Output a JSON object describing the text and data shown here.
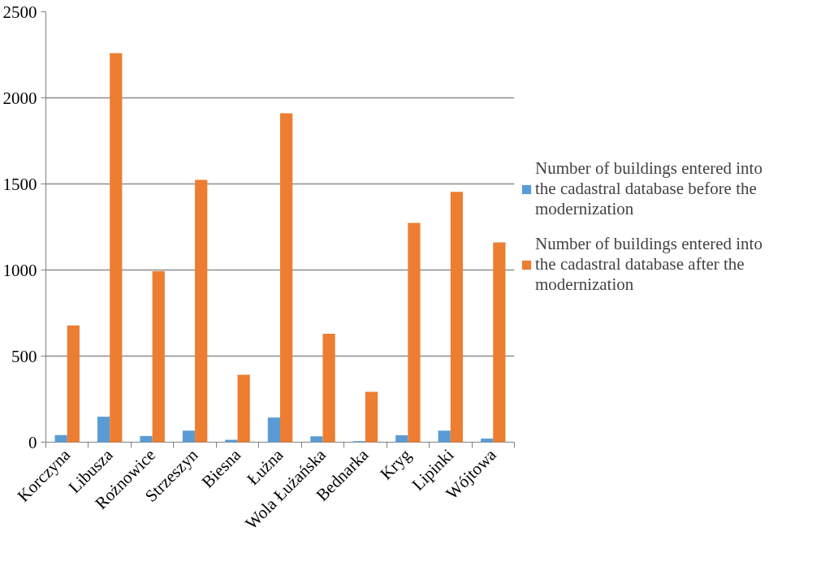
{
  "chart_data": {
    "type": "bar",
    "categories": [
      "Korczyna",
      "Libusza",
      "Rożnowice",
      "Strzeszyn",
      "Biesna",
      "Łużna",
      "Wola Łużańska",
      "Bednarka",
      "Kryg",
      "Lipinki",
      "Wójtowa"
    ],
    "series": [
      {
        "name": "Number of buildings entered into the cadastral database before the modernization",
        "color": "#5b9bd5",
        "values": [
          41,
          148,
          36,
          67,
          14,
          143,
          34,
          6,
          40,
          67,
          21
        ]
      },
      {
        "name": "Number of buildings entered into the cadastral database after the modernization",
        "color": "#ed7d31",
        "values": [
          678,
          2259,
          993,
          1524,
          392,
          1910,
          630,
          292,
          1273,
          1454,
          1160
        ]
      }
    ],
    "ylim": [
      0,
      2500
    ],
    "yticks": [
      0,
      500,
      1000,
      1500,
      2000,
      2500
    ],
    "grid": "y",
    "legend": "right"
  }
}
